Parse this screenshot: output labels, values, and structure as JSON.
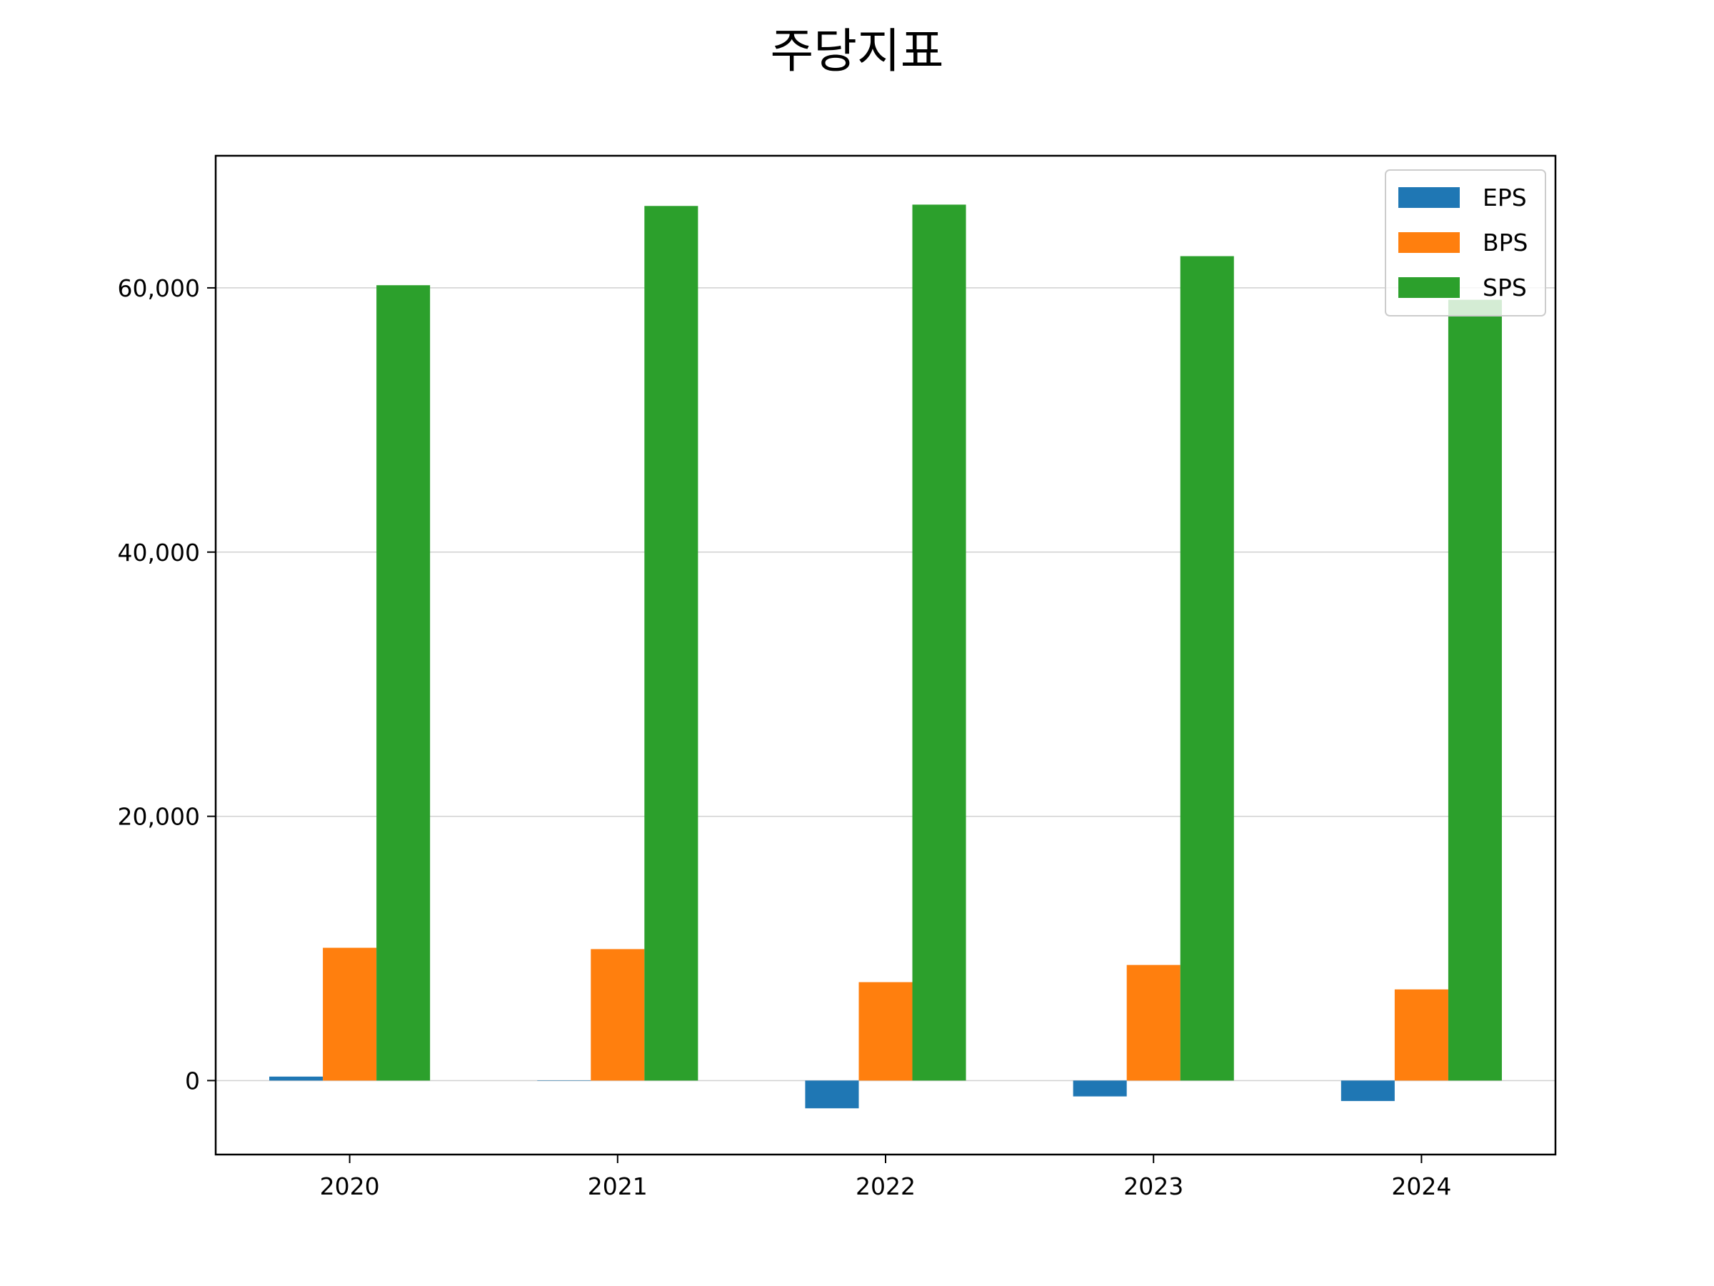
{
  "chart_data": {
    "type": "bar",
    "title": "주당지표",
    "xlabel": "",
    "ylabel": "",
    "categories": [
      "2020",
      "2021",
      "2022",
      "2023",
      "2024"
    ],
    "series": [
      {
        "name": "EPS",
        "color": "#1f77b4",
        "values": [
          300,
          0,
          -2100,
          -1200,
          -1550
        ]
      },
      {
        "name": "BPS",
        "color": "#ff7f0e",
        "values": [
          10050,
          9950,
          7450,
          8750,
          6900
        ]
      },
      {
        "name": "SPS",
        "color": "#2ca02c",
        "values": [
          60200,
          66200,
          66300,
          62400,
          59100
        ]
      }
    ],
    "ylim": [
      -5600,
      70000
    ],
    "yticks": [
      0,
      20000,
      40000,
      60000
    ],
    "ytick_labels": [
      "0",
      "20,000",
      "40,000",
      "60,000"
    ],
    "grid": "horizontal",
    "legend_position": "top-right"
  }
}
